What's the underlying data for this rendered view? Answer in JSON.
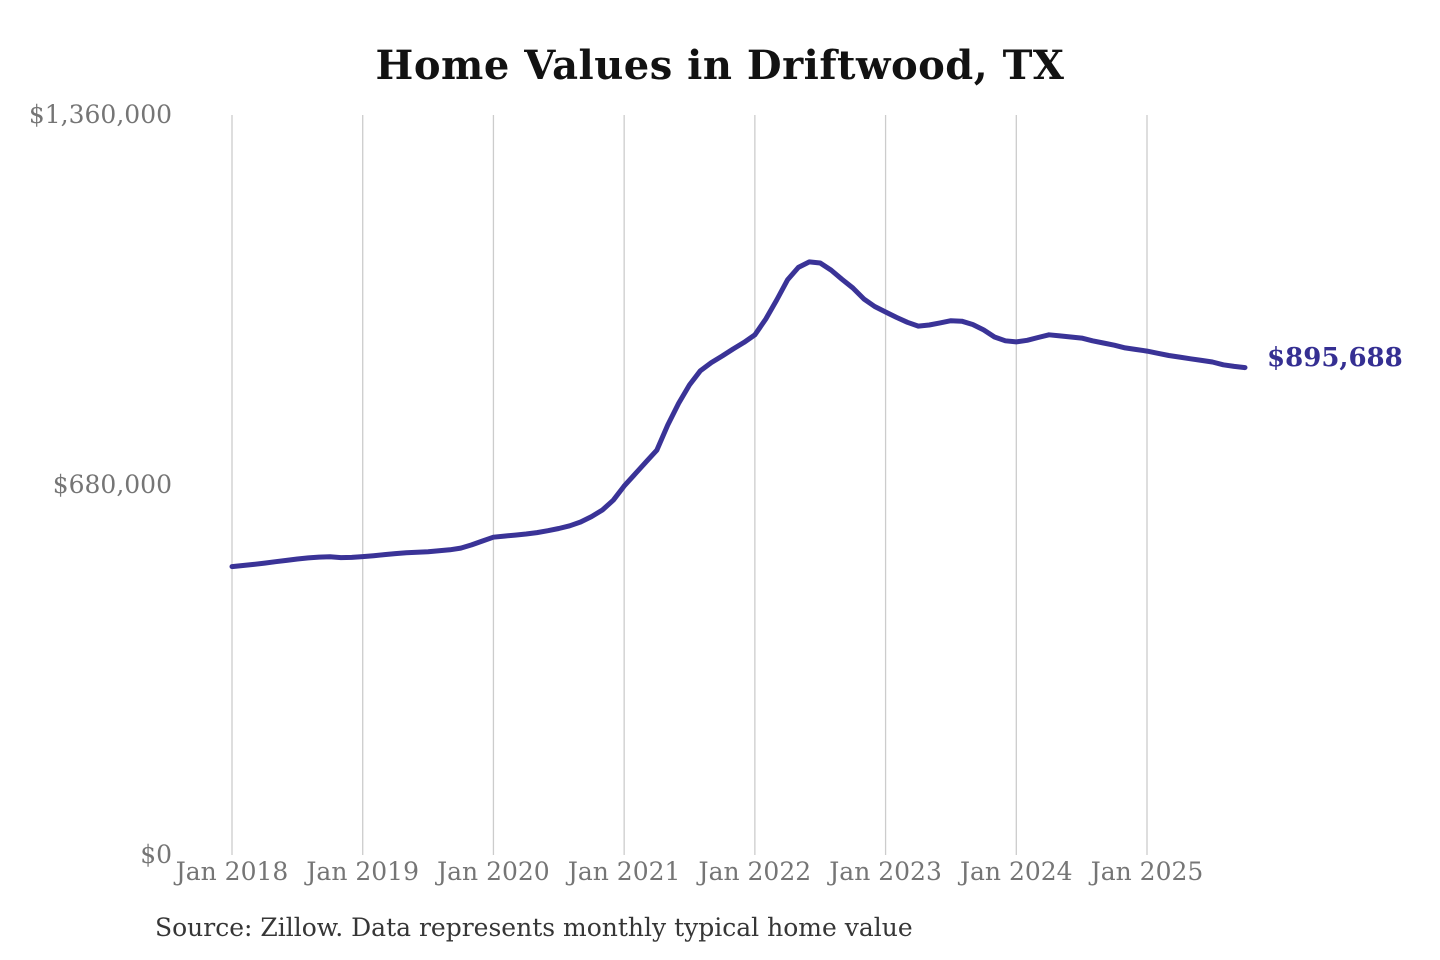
{
  "chart_data": {
    "type": "line",
    "title": "Home Values in Driftwood, TX",
    "source": "Source: Zillow. Data represents monthly typical home value",
    "series_name": "Monthly typical home value",
    "unit": "USD",
    "ylim": [
      0,
      1360000
    ],
    "grid": "vertical-yearly",
    "legend": "none",
    "end_label": "$895,688",
    "latest_value": 895688,
    "colors": {
      "line": "#3a3397",
      "end_label": "#352f92",
      "axis_text": "#757575",
      "gridline": "#cccccc",
      "title_text": "#121212",
      "source_text": "#363636",
      "background": "#ffffff"
    },
    "y_ticks": [
      {
        "value": 0,
        "label": "$0"
      },
      {
        "value": 680000,
        "label": "$680,000"
      },
      {
        "value": 1360000,
        "label": "$1,360,000"
      }
    ],
    "x_ticks": [
      {
        "month_index": 0,
        "label": "Jan 2018"
      },
      {
        "month_index": 12,
        "label": "Jan 2019"
      },
      {
        "month_index": 24,
        "label": "Jan 2020"
      },
      {
        "month_index": 36,
        "label": "Jan 2021"
      },
      {
        "month_index": 48,
        "label": "Jan 2022"
      },
      {
        "month_index": 60,
        "label": "Jan 2023"
      },
      {
        "month_index": 72,
        "label": "Jan 2024"
      },
      {
        "month_index": 84,
        "label": "Jan 2025"
      }
    ],
    "months": [
      "2018-01",
      "2018-02",
      "2018-03",
      "2018-04",
      "2018-05",
      "2018-06",
      "2018-07",
      "2018-08",
      "2018-09",
      "2018-10",
      "2018-11",
      "2018-12",
      "2019-01",
      "2019-02",
      "2019-03",
      "2019-04",
      "2019-05",
      "2019-06",
      "2019-07",
      "2019-08",
      "2019-09",
      "2019-10",
      "2019-11",
      "2019-12",
      "2020-01",
      "2020-02",
      "2020-03",
      "2020-04",
      "2020-05",
      "2020-06",
      "2020-07",
      "2020-08",
      "2020-09",
      "2020-10",
      "2020-11",
      "2020-12",
      "2021-01",
      "2021-02",
      "2021-03",
      "2021-04",
      "2021-05",
      "2021-06",
      "2021-07",
      "2021-08",
      "2021-09",
      "2021-10",
      "2021-11",
      "2021-12",
      "2022-01",
      "2022-02",
      "2022-03",
      "2022-04",
      "2022-05",
      "2022-06",
      "2022-07",
      "2022-08",
      "2022-09",
      "2022-10",
      "2022-11",
      "2022-12",
      "2023-01",
      "2023-02",
      "2023-03",
      "2023-04",
      "2023-05",
      "2023-06",
      "2023-07",
      "2023-08",
      "2023-09",
      "2023-10",
      "2023-11",
      "2023-12",
      "2024-01",
      "2024-02",
      "2024-03",
      "2024-04",
      "2024-05",
      "2024-06",
      "2024-07",
      "2024-08",
      "2024-09",
      "2024-10",
      "2024-11",
      "2024-12",
      "2025-01",
      "2025-02",
      "2025-03",
      "2025-04",
      "2025-05",
      "2025-06",
      "2025-07",
      "2025-08",
      "2025-09",
      "2025-10"
    ],
    "values": [
      530000,
      532000,
      534000,
      536500,
      539000,
      541500,
      544000,
      546000,
      547500,
      548000,
      546500,
      547000,
      548500,
      550000,
      552000,
      554000,
      555500,
      556500,
      557500,
      559000,
      561000,
      564000,
      570000,
      577000,
      584000,
      586000,
      588000,
      590000,
      592500,
      596000,
      600000,
      605000,
      612000,
      622000,
      634000,
      652000,
      678000,
      700000,
      722000,
      744000,
      790000,
      830000,
      864000,
      890000,
      905000,
      917000,
      930000,
      942000,
      956000,
      985000,
      1020000,
      1057000,
      1080000,
      1090000,
      1088000,
      1075000,
      1058000,
      1042000,
      1022000,
      1008000,
      998000,
      988000,
      979000,
      972000,
      974000,
      978000,
      982000,
      981000,
      975000,
      965000,
      952000,
      945000,
      943000,
      946000,
      951000,
      956000,
      954000,
      952000,
      950000,
      945000,
      941000,
      937000,
      932000,
      929000,
      926000,
      922000,
      918000,
      915000,
      912000,
      909000,
      906000,
      901000,
      898000,
      895688
    ]
  }
}
